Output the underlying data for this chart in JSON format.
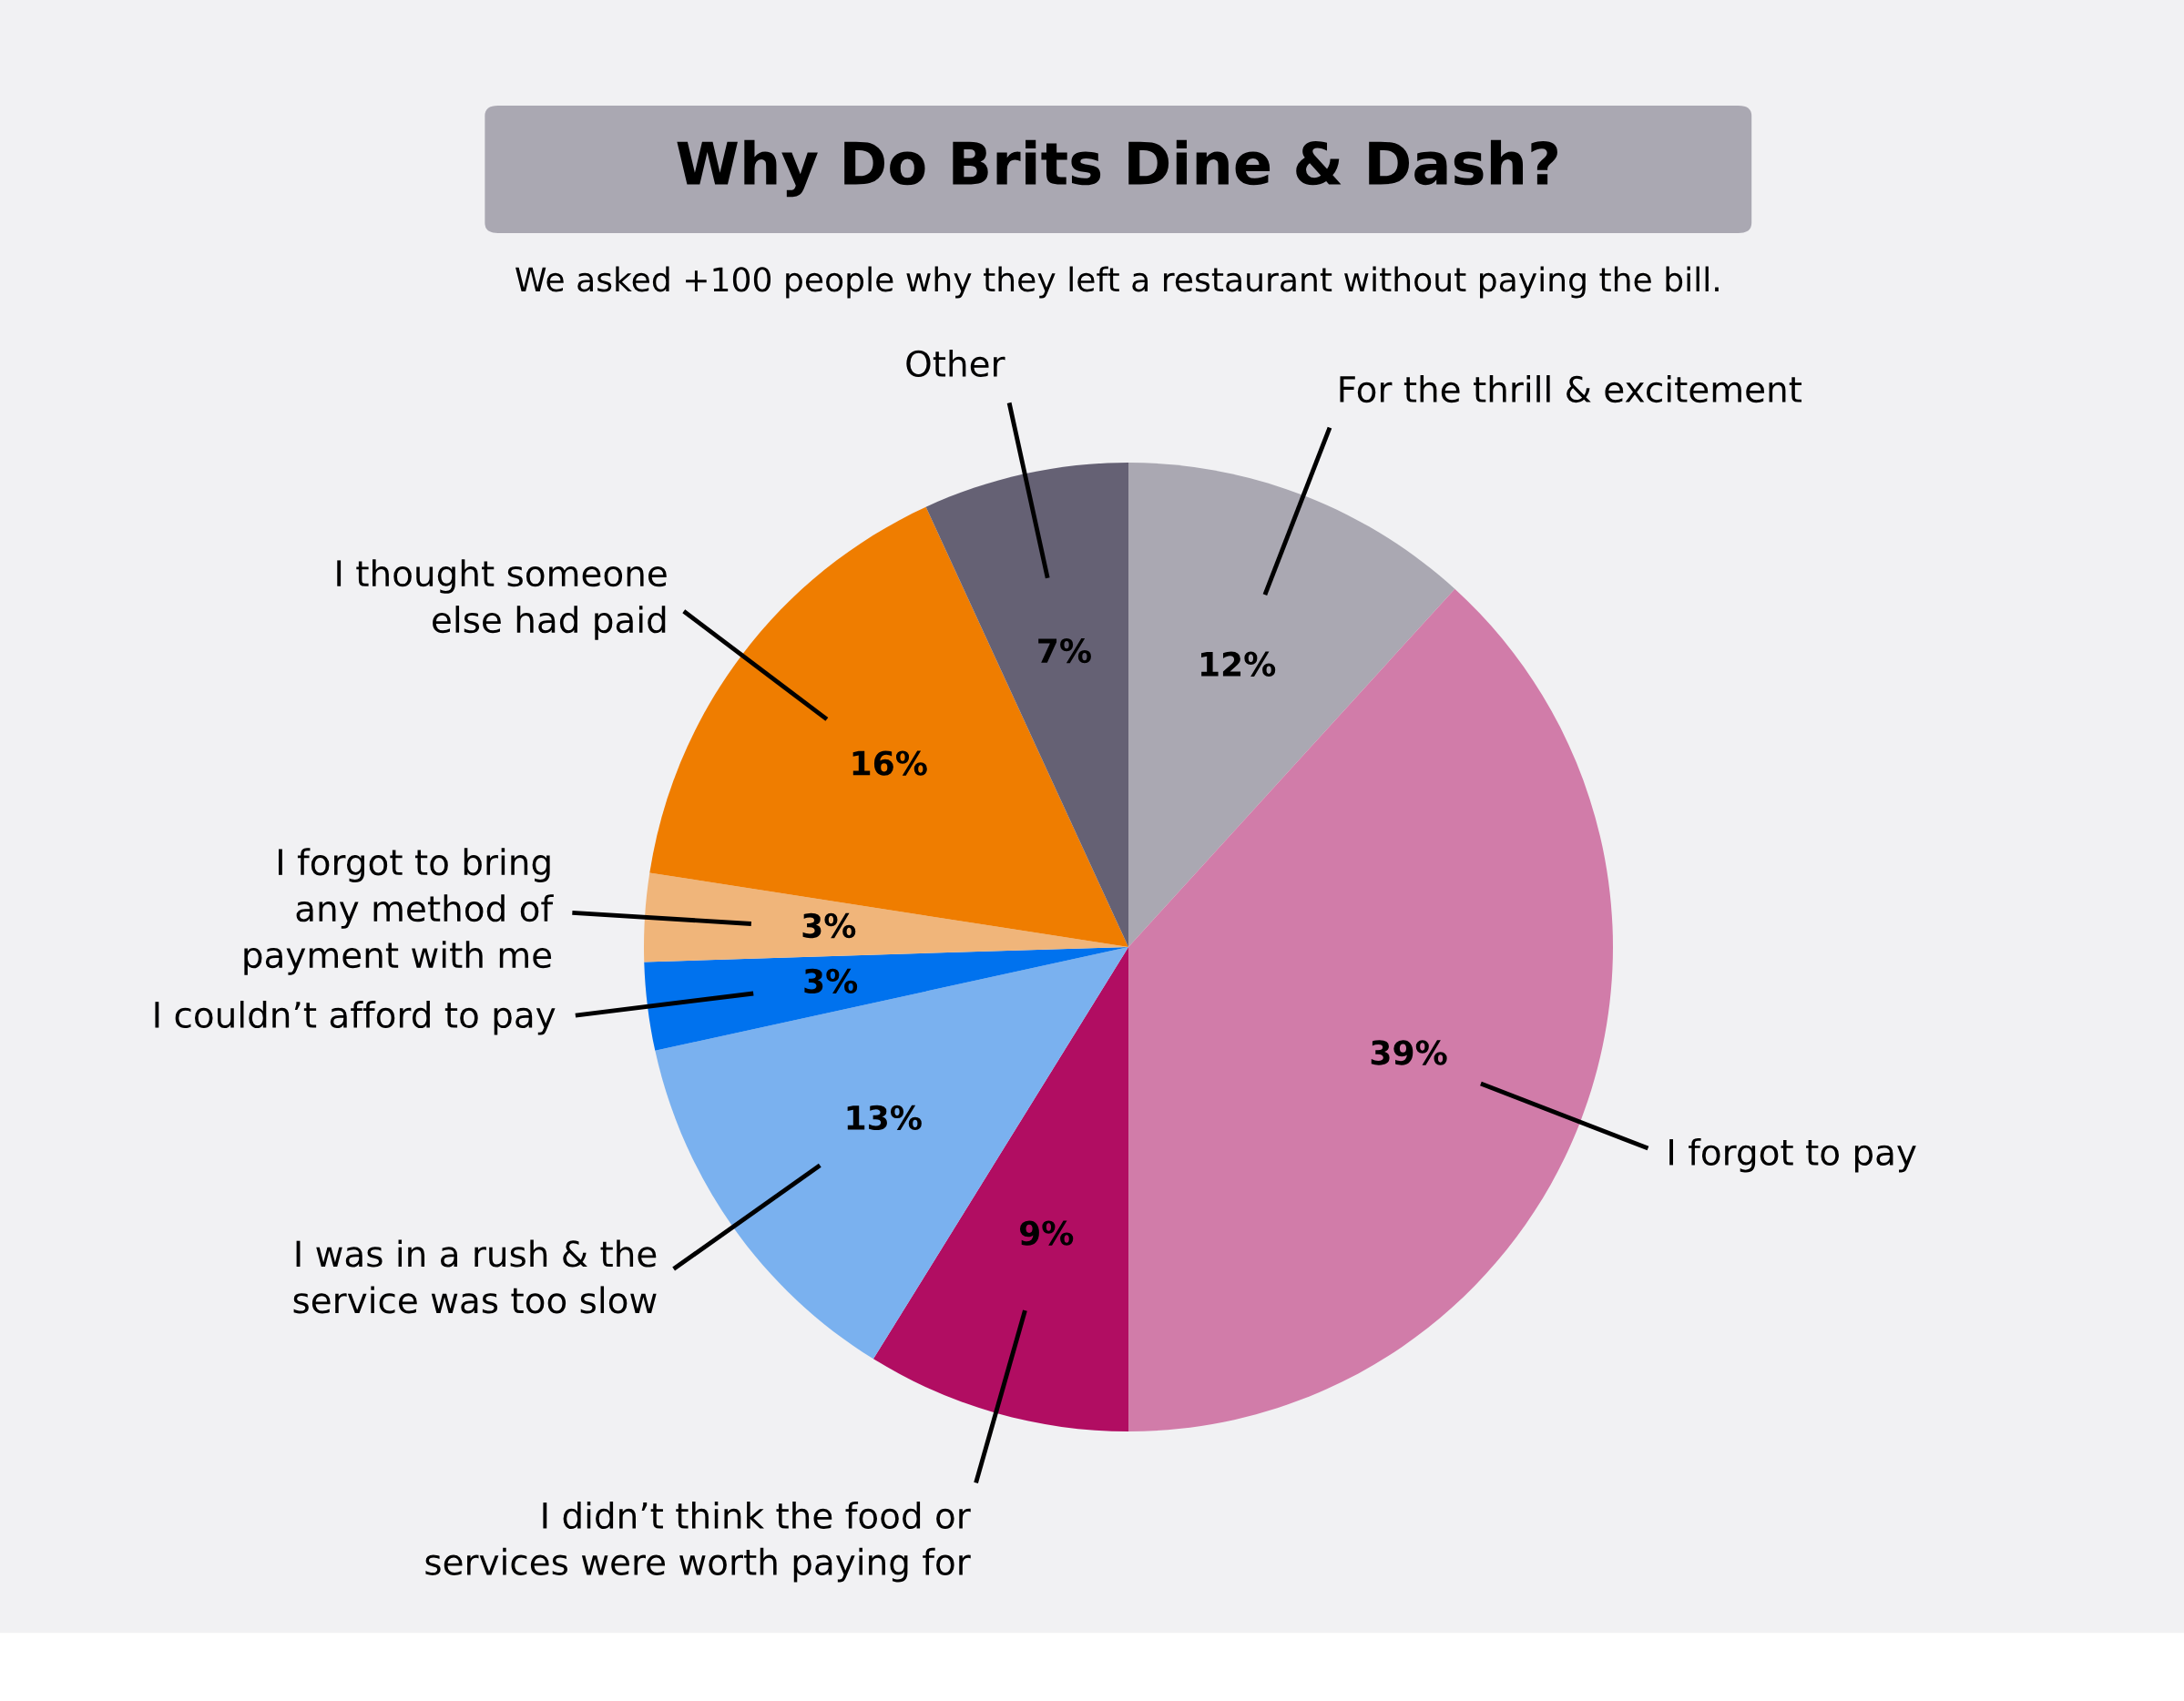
{
  "chart_data": {
    "type": "pie",
    "title": "Why Do Brits Dine & Dash?",
    "subtitle": "We asked +100 people why they left a restaurant without paying the bill.",
    "categories": [
      "For the thrill & excitement",
      "I forgot to pay",
      "I didn’t think the food or\nservices were worth paying for",
      "I was in a rush & the\nservice was too slow",
      "I couldn’t afford to pay",
      "I forgot to bring\nany method of\npayment with me",
      "I thought someone\nelse had paid",
      "Other"
    ],
    "values": [
      12,
      39,
      9,
      13,
      3,
      3,
      16,
      7
    ],
    "value_labels": [
      "12%",
      "39%",
      "9%",
      "13%",
      "3%",
      "3%",
      "16%",
      "7%"
    ],
    "colors": [
      "#aaa8b2",
      "#d17ca9",
      "#b10d62",
      "#7ab1ef",
      "#0072ee",
      "#f0b57a",
      "#ef7d00",
      "#656174"
    ]
  }
}
